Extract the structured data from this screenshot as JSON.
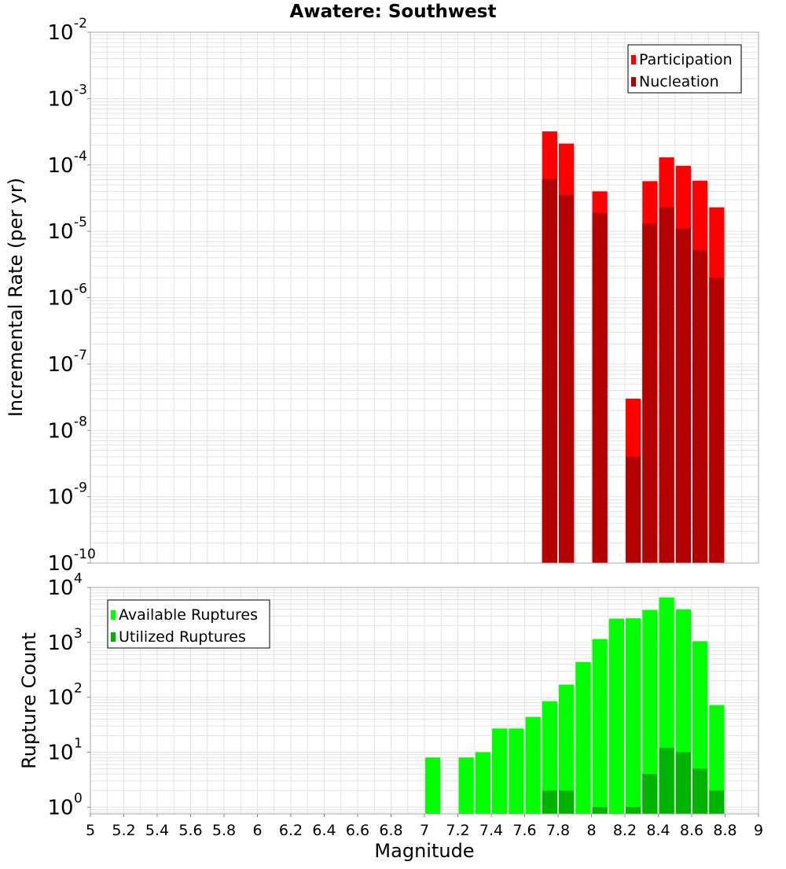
{
  "chart_data": [
    {
      "type": "bar",
      "title": "Awatere: Southwest",
      "ylabel": "Incremental Rate (per yr)",
      "yscale": "log",
      "ylim": [
        1e-10,
        0.01
      ],
      "xlim": [
        5,
        9
      ],
      "legend_position": "top-right",
      "grid": true,
      "bin_width": 0.1,
      "y_ticks": [
        {
          "base": "10",
          "exp": "-10"
        },
        {
          "base": "10",
          "exp": "-9"
        },
        {
          "base": "10",
          "exp": "-8"
        },
        {
          "base": "10",
          "exp": "-7"
        },
        {
          "base": "10",
          "exp": "-6"
        },
        {
          "base": "10",
          "exp": "-5"
        },
        {
          "base": "10",
          "exp": "-4"
        },
        {
          "base": "10",
          "exp": "-3"
        },
        {
          "base": "10",
          "exp": "-2"
        }
      ],
      "series": [
        {
          "name": "Participation",
          "color": "#ff0000",
          "points": [
            [
              7.75,
              0.00032
            ],
            [
              7.85,
              0.00021
            ],
            [
              8.05,
              4e-05
            ],
            [
              8.25,
              3e-08
            ],
            [
              8.35,
              5.7e-05
            ],
            [
              8.45,
              0.00013
            ],
            [
              8.55,
              9.7e-05
            ],
            [
              8.65,
              5.8e-05
            ],
            [
              8.75,
              2.3e-05
            ]
          ]
        },
        {
          "name": "Nucleation",
          "color": "#b30000",
          "points": [
            [
              7.75,
              6.2e-05
            ],
            [
              7.85,
              3.5e-05
            ],
            [
              8.05,
              1.9e-05
            ],
            [
              8.25,
              4e-09
            ],
            [
              8.35,
              1.3e-05
            ],
            [
              8.45,
              2.3e-05
            ],
            [
              8.55,
              1.1e-05
            ],
            [
              8.65,
              5.2e-06
            ],
            [
              8.75,
              2e-06
            ]
          ]
        }
      ]
    },
    {
      "type": "bar",
      "xlabel": "Magnitude",
      "ylabel": "Rupture Count",
      "yscale": "log",
      "ylim": [
        0.75,
        10000
      ],
      "xlim": [
        5,
        9
      ],
      "legend_position": "top-left",
      "grid": true,
      "bin_width": 0.1,
      "x_ticks": [
        "5",
        "5.2",
        "5.4",
        "5.6",
        "5.8",
        "6",
        "6.2",
        "6.4",
        "6.6",
        "6.8",
        "7",
        "7.2",
        "7.4",
        "7.6",
        "7.8",
        "8",
        "8.2",
        "8.4",
        "8.6",
        "8.8",
        "9"
      ],
      "y_ticks": [
        {
          "base": "10",
          "exp": "0"
        },
        {
          "base": "10",
          "exp": "1"
        },
        {
          "base": "10",
          "exp": "2"
        },
        {
          "base": "10",
          "exp": "3"
        },
        {
          "base": "10",
          "exp": "4"
        }
      ],
      "series": [
        {
          "name": "Available Ruptures",
          "color": "#00ff00",
          "points": [
            [
              7.05,
              8
            ],
            [
              7.25,
              8
            ],
            [
              7.35,
              10
            ],
            [
              7.45,
              27
            ],
            [
              7.55,
              27
            ],
            [
              7.65,
              44
            ],
            [
              7.75,
              85
            ],
            [
              7.85,
              170
            ],
            [
              7.95,
              440
            ],
            [
              8.05,
              1150
            ],
            [
              8.15,
              2700
            ],
            [
              8.25,
              2750
            ],
            [
              8.35,
              3900
            ],
            [
              8.45,
              6600
            ],
            [
              8.55,
              4000
            ],
            [
              8.65,
              1050
            ],
            [
              8.75,
              72
            ]
          ]
        },
        {
          "name": "Utilized Ruptures",
          "color": "#00b300",
          "points": [
            [
              7.75,
              2
            ],
            [
              7.85,
              2
            ],
            [
              8.05,
              1
            ],
            [
              8.25,
              1
            ],
            [
              8.35,
              4
            ],
            [
              8.45,
              12
            ],
            [
              8.55,
              10
            ],
            [
              8.65,
              5
            ],
            [
              8.75,
              2
            ]
          ]
        }
      ]
    }
  ]
}
